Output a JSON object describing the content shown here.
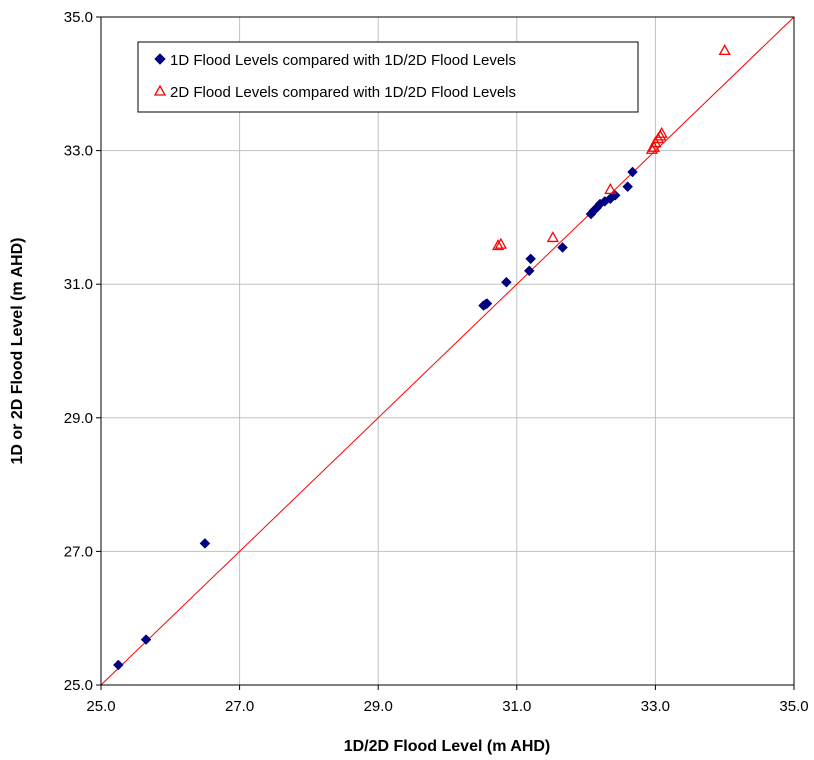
{
  "chart_data": {
    "type": "scatter",
    "title": "",
    "xlabel": "1D/2D Flood Level (m AHD)",
    "ylabel": "1D or 2D Flood Level (m AHD)",
    "xlim": [
      25.0,
      35.0
    ],
    "ylim": [
      25.0,
      35.0
    ],
    "x_ticks": [
      "25.0",
      "27.0",
      "29.0",
      "31.0",
      "33.0",
      "35.0"
    ],
    "y_ticks": [
      "25.0",
      "27.0",
      "29.0",
      "31.0",
      "33.0",
      "35.0"
    ],
    "grid": true,
    "legend_position": "top-left",
    "reference_line": {
      "from": [
        25.0,
        25.0
      ],
      "to": [
        35.0,
        35.0
      ],
      "color": "#ff0000"
    },
    "series": [
      {
        "name": "1D Flood Levels compared with 1D/2D Flood Levels",
        "marker": "diamond",
        "color": "#000080",
        "points": [
          [
            25.25,
            25.3
          ],
          [
            25.65,
            25.68
          ],
          [
            26.5,
            27.12
          ],
          [
            30.52,
            30.68
          ],
          [
            30.55,
            30.7
          ],
          [
            30.57,
            30.71
          ],
          [
            30.85,
            31.03
          ],
          [
            31.18,
            31.2
          ],
          [
            31.2,
            31.38
          ],
          [
            31.66,
            31.55
          ],
          [
            32.07,
            32.05
          ],
          [
            32.11,
            32.1
          ],
          [
            32.15,
            32.14
          ],
          [
            32.2,
            32.2
          ],
          [
            32.27,
            32.24
          ],
          [
            32.35,
            32.28
          ],
          [
            32.42,
            32.33
          ],
          [
            32.6,
            32.46
          ],
          [
            32.67,
            32.68
          ]
        ]
      },
      {
        "name": "2D Flood Levels compared with 1D/2D Flood Levels",
        "marker": "triangle-open",
        "color": "#ff0000",
        "points": [
          [
            30.73,
            31.58
          ],
          [
            30.77,
            31.6
          ],
          [
            31.52,
            31.7
          ],
          [
            32.35,
            32.42
          ],
          [
            32.95,
            33.02
          ],
          [
            32.98,
            33.05
          ],
          [
            33.0,
            33.12
          ],
          [
            33.04,
            33.18
          ],
          [
            33.07,
            33.22
          ],
          [
            33.09,
            33.26
          ],
          [
            34.0,
            34.5
          ]
        ]
      }
    ]
  }
}
